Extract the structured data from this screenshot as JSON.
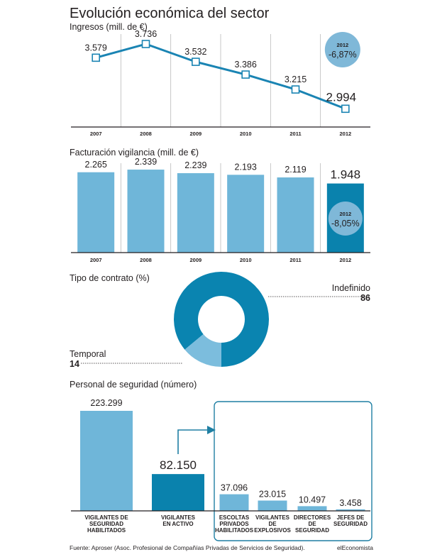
{
  "title": "Evolución económica del sector",
  "colors": {
    "line": "#1a84b3",
    "bar": "#6fb6d9",
    "bar_dark": "#0a82ad",
    "badge": "#7fb8d8",
    "donut_main": "#0a84b0",
    "donut_minor": "#7cbddd",
    "frame": "#1f7fa3"
  },
  "chart_data": [
    {
      "type": "line",
      "title": "Ingresos (mill. de €)",
      "categories": [
        "2007",
        "2008",
        "2009",
        "2010",
        "2011",
        "2012"
      ],
      "values": [
        3579,
        3736,
        3532,
        3386,
        3215,
        2994
      ],
      "value_labels": [
        "3.579",
        "3.736",
        "3.532",
        "3.386",
        "3.215",
        "2.994"
      ],
      "ylim": [
        2850,
        3850
      ],
      "grid": "vertical",
      "badge": {
        "year": "2012",
        "change": "-6,87%"
      }
    },
    {
      "type": "bar",
      "title": "Facturación vigilancia (mill. de €)",
      "categories": [
        "2007",
        "2008",
        "2009",
        "2010",
        "2011",
        "2012"
      ],
      "values": [
        2265,
        2339,
        2239,
        2193,
        2119,
        1948
      ],
      "value_labels": [
        "2.265",
        "2.339",
        "2.239",
        "2.193",
        "2.119",
        "1.948"
      ],
      "ylim": [
        0,
        2600
      ],
      "highlight_index": 5,
      "badge": {
        "year": "2012",
        "change": "-8,05%"
      }
    },
    {
      "type": "pie",
      "title": "Tipo de contrato (%)",
      "donut": true,
      "slices": [
        {
          "name": "Indefinido",
          "value": 86
        },
        {
          "name": "Temporal",
          "value": 14
        }
      ]
    },
    {
      "type": "bar",
      "title": "Personal de seguridad (número)",
      "categories": [
        [
          "VIGILANTES DE",
          "SEGURIDAD",
          "HABILITADOS"
        ],
        [
          "VIGILANTES",
          "EN ACTIVO"
        ],
        [
          "ESCOLTAS",
          "PRIVADOS",
          "HABILITADOS"
        ],
        [
          "VIGILANTES",
          "DE",
          "EXPLOSIVOS"
        ],
        [
          "DIRECTORES",
          "DE",
          "SEGURIDAD"
        ],
        [
          "JEFES DE",
          "SEGURIDAD"
        ]
      ],
      "values": [
        223299,
        82150,
        37096,
        23015,
        10497,
        3458
      ],
      "value_labels": [
        "223.299",
        "82.150",
        "37.096",
        "23.015",
        "10.497",
        "3.458"
      ],
      "ylim": [
        0,
        223299
      ],
      "highlight_index": 1,
      "grouped_from_index": 2
    }
  ],
  "footer": {
    "source": "Fuente: Aproser (Asoc. Profesional de Compañías Privadas de Servicios de Seguridad).",
    "brand": "elEconomista"
  }
}
